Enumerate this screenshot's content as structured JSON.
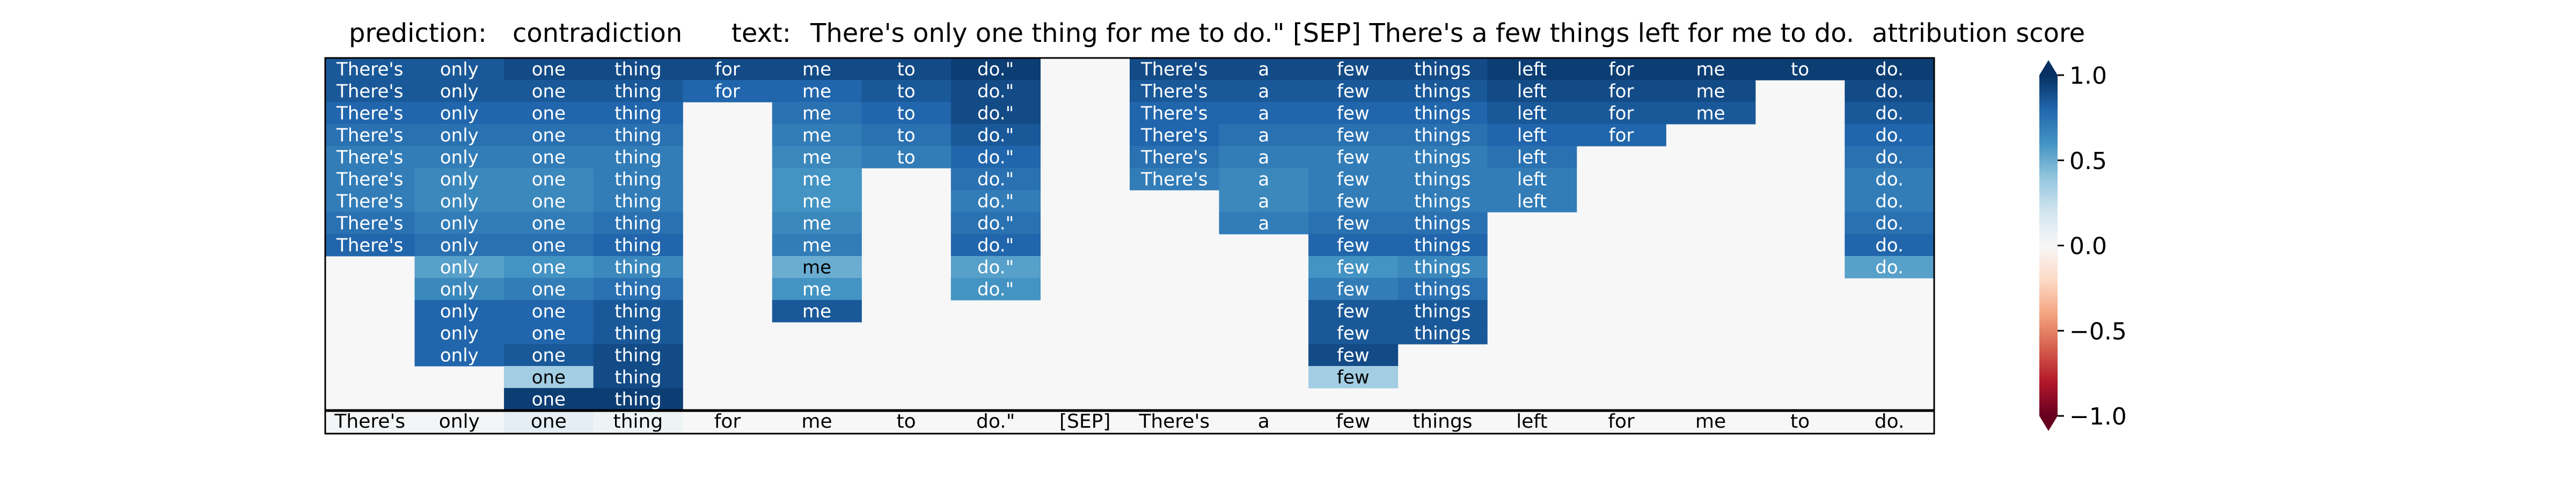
{
  "header": {
    "prediction_label": "prediction:",
    "prediction_value": "contradiction",
    "text_label": "text:",
    "text_value": "There's only one thing for me to do.\" [SEP] There's a few things left for me to do.",
    "score_label": "attribution score"
  },
  "chart_data": {
    "type": "heatmap",
    "tokens": [
      "There's",
      "only",
      "one",
      "thing",
      "for",
      "me",
      "to",
      "do.\"",
      "[SEP]",
      "There's",
      "a",
      "few",
      "things",
      "left",
      "for",
      "me",
      "to",
      "do."
    ],
    "n_layers": 16,
    "colorbar": {
      "label": "attribution score",
      "range": [
        -1.0,
        1.0
      ],
      "ticks": [
        -1.0,
        -0.5,
        0.0,
        0.5,
        1.0
      ],
      "tick_labels": [
        "−1.0",
        "−0.5",
        "0.0",
        "0.5",
        "1.0"
      ],
      "colormap": "RdBu",
      "extend": "both"
    },
    "rows": [
      [
        0.85,
        0.85,
        0.9,
        0.9,
        0.9,
        0.9,
        0.9,
        0.95,
        0,
        0.9,
        0.9,
        0.9,
        0.9,
        0.95,
        0.95,
        0.95,
        0.95,
        0.95
      ],
      [
        0.85,
        0.85,
        0.85,
        0.85,
        0.8,
        0.8,
        0.85,
        0.9,
        0,
        0.85,
        0.85,
        0.85,
        0.85,
        0.9,
        0.9,
        0.9,
        0,
        0.9
      ],
      [
        0.8,
        0.8,
        0.8,
        0.8,
        0,
        0.75,
        0.8,
        0.9,
        0,
        0.8,
        0.8,
        0.8,
        0.8,
        0.85,
        0.85,
        0.85,
        0,
        0.85
      ],
      [
        0.75,
        0.75,
        0.75,
        0.75,
        0,
        0.7,
        0.75,
        0.85,
        0,
        0.8,
        0.75,
        0.75,
        0.75,
        0.8,
        0.8,
        0,
        0,
        0.8
      ],
      [
        0.7,
        0.7,
        0.7,
        0.7,
        0,
        0.65,
        0.7,
        0.8,
        0,
        0.75,
        0.7,
        0.7,
        0.7,
        0.75,
        0,
        0,
        0,
        0.75
      ],
      [
        0.7,
        0.65,
        0.65,
        0.7,
        0,
        0.6,
        0,
        0.75,
        0,
        0.7,
        0.65,
        0.7,
        0.7,
        0.7,
        0,
        0,
        0,
        0.7
      ],
      [
        0.7,
        0.65,
        0.65,
        0.7,
        0,
        0.6,
        0,
        0.7,
        0,
        0,
        0.65,
        0.7,
        0.7,
        0.7,
        0,
        0,
        0,
        0.7
      ],
      [
        0.75,
        0.7,
        0.7,
        0.75,
        0,
        0.65,
        0,
        0.75,
        0,
        0,
        0.7,
        0.75,
        0.75,
        0,
        0,
        0,
        0,
        0.75
      ],
      [
        0.8,
        0.75,
        0.75,
        0.8,
        0,
        0.7,
        0,
        0.8,
        0,
        0,
        0,
        0.8,
        0.8,
        0,
        0,
        0,
        0,
        0.8
      ],
      [
        0,
        0.55,
        0.6,
        0.65,
        0,
        0.5,
        0,
        0.55,
        0,
        0,
        0,
        0.6,
        0.65,
        0,
        0,
        0,
        0,
        0.55
      ],
      [
        0,
        0.65,
        0.7,
        0.75,
        0,
        0.6,
        0,
        0.6,
        0,
        0,
        0,
        0.7,
        0.75,
        0,
        0,
        0,
        0,
        0
      ],
      [
        0,
        0.8,
        0.8,
        0.85,
        0,
        0.85,
        0,
        0,
        0,
        0,
        0,
        0.85,
        0.85,
        0,
        0,
        0,
        0,
        0
      ],
      [
        0,
        0.8,
        0.8,
        0.85,
        0,
        0,
        0,
        0,
        0,
        0,
        0,
        0.85,
        0.85,
        0,
        0,
        0,
        0,
        0
      ],
      [
        0,
        0.8,
        0.85,
        0.9,
        0,
        0,
        0,
        0,
        0,
        0,
        0,
        0.9,
        0,
        0,
        0,
        0,
        0,
        0
      ],
      [
        0,
        0,
        0.35,
        0.9,
        0,
        0,
        0,
        0,
        0,
        0,
        0,
        0.35,
        0,
        0,
        0,
        0,
        0,
        0
      ],
      [
        0,
        0,
        0.95,
        0.95,
        0,
        0,
        0,
        0,
        0,
        0,
        0,
        0,
        0,
        0,
        0,
        0,
        0,
        0
      ]
    ],
    "input_row": [
      0.02,
      0.02,
      0.1,
      0.05,
      0,
      0,
      0,
      0,
      0,
      0,
      0,
      0,
      0,
      0,
      0,
      0,
      0,
      0
    ]
  }
}
